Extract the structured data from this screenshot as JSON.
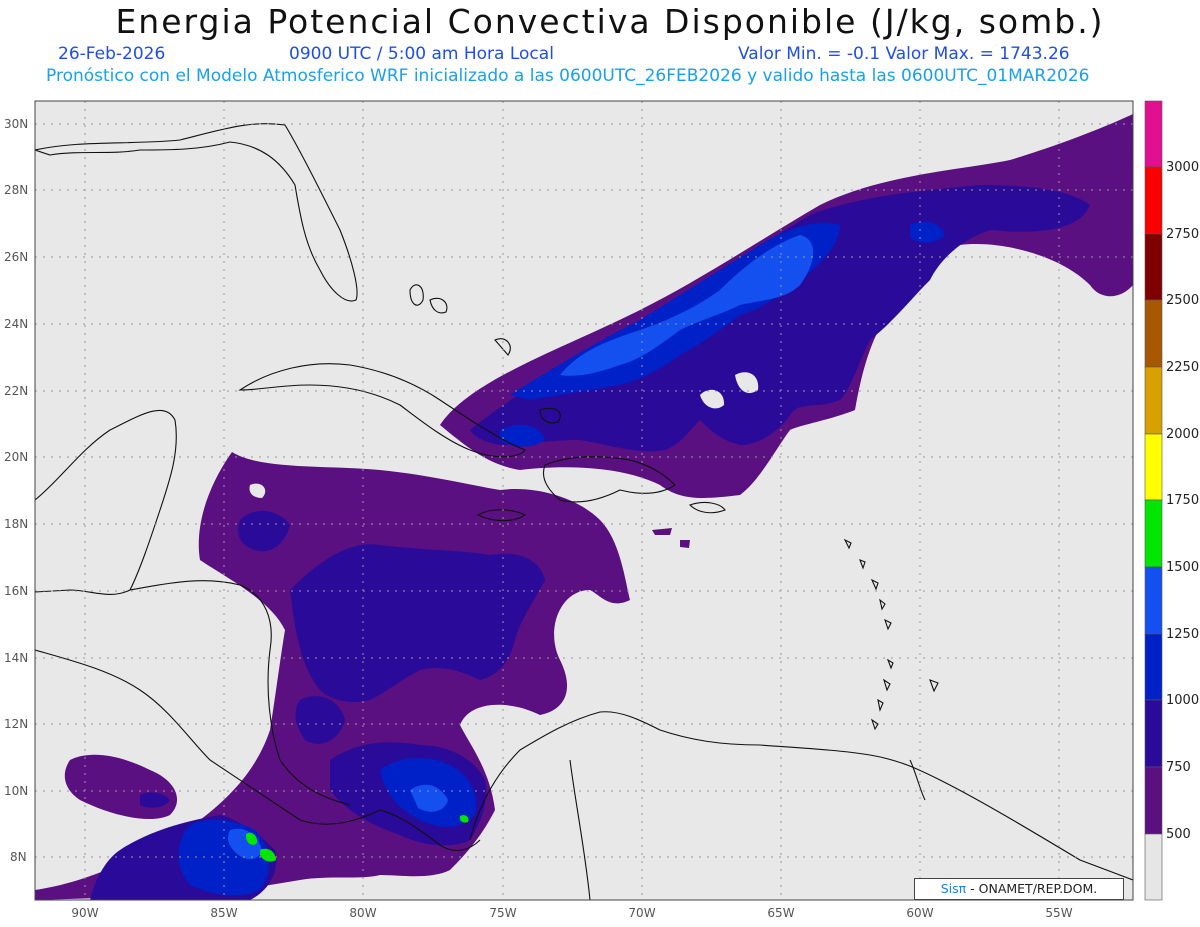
{
  "header": {
    "title": "Energia Potencial Convectiva Disponible (J/kg, somb.)",
    "date": "26-Feb-2026",
    "time": "0900 UTC / 5:00 am Hora Local",
    "minmax": "Valor Min. = -0.1  Valor Max. = 1743.26",
    "model_line": "Pronóstico con el Modelo Atmosferico WRF inicializado a las 0600UTC_26FEB2026 y valido hasta las  0600UTC_01MAR2026"
  },
  "axes": {
    "lat_labels": [
      "30N",
      "28N",
      "26N",
      "24N",
      "22N",
      "20N",
      "18N",
      "16N",
      "14N",
      "12N",
      "10N",
      "8N"
    ],
    "lon_labels": [
      "90W",
      "85W",
      "80W",
      "75W",
      "70W",
      "65W",
      "60W",
      "55W"
    ]
  },
  "colorbar": {
    "labels": [
      "3000",
      "2750",
      "2500",
      "2250",
      "2000",
      "1750",
      "1500",
      "1250",
      "1000",
      "750",
      "500"
    ],
    "colors": [
      "#e01090",
      "#fa0000",
      "#800000",
      "#a85800",
      "#d8a000",
      "#ffff00",
      "#00e600",
      "#1450f0",
      "#0020c8",
      "#2a0a98",
      "#5a1080",
      "#e6e6e6"
    ]
  },
  "credit": {
    "logo": "Sisπ",
    "text": " - ONAMET/REP.DOM."
  },
  "map_colors": {
    "ocean": "#e8e8e8",
    "level_500": "#5a1080",
    "level_750": "#2a0a98",
    "level_1000": "#0020c8",
    "level_1250": "#1450f0",
    "level_1500": "#00e600"
  }
}
